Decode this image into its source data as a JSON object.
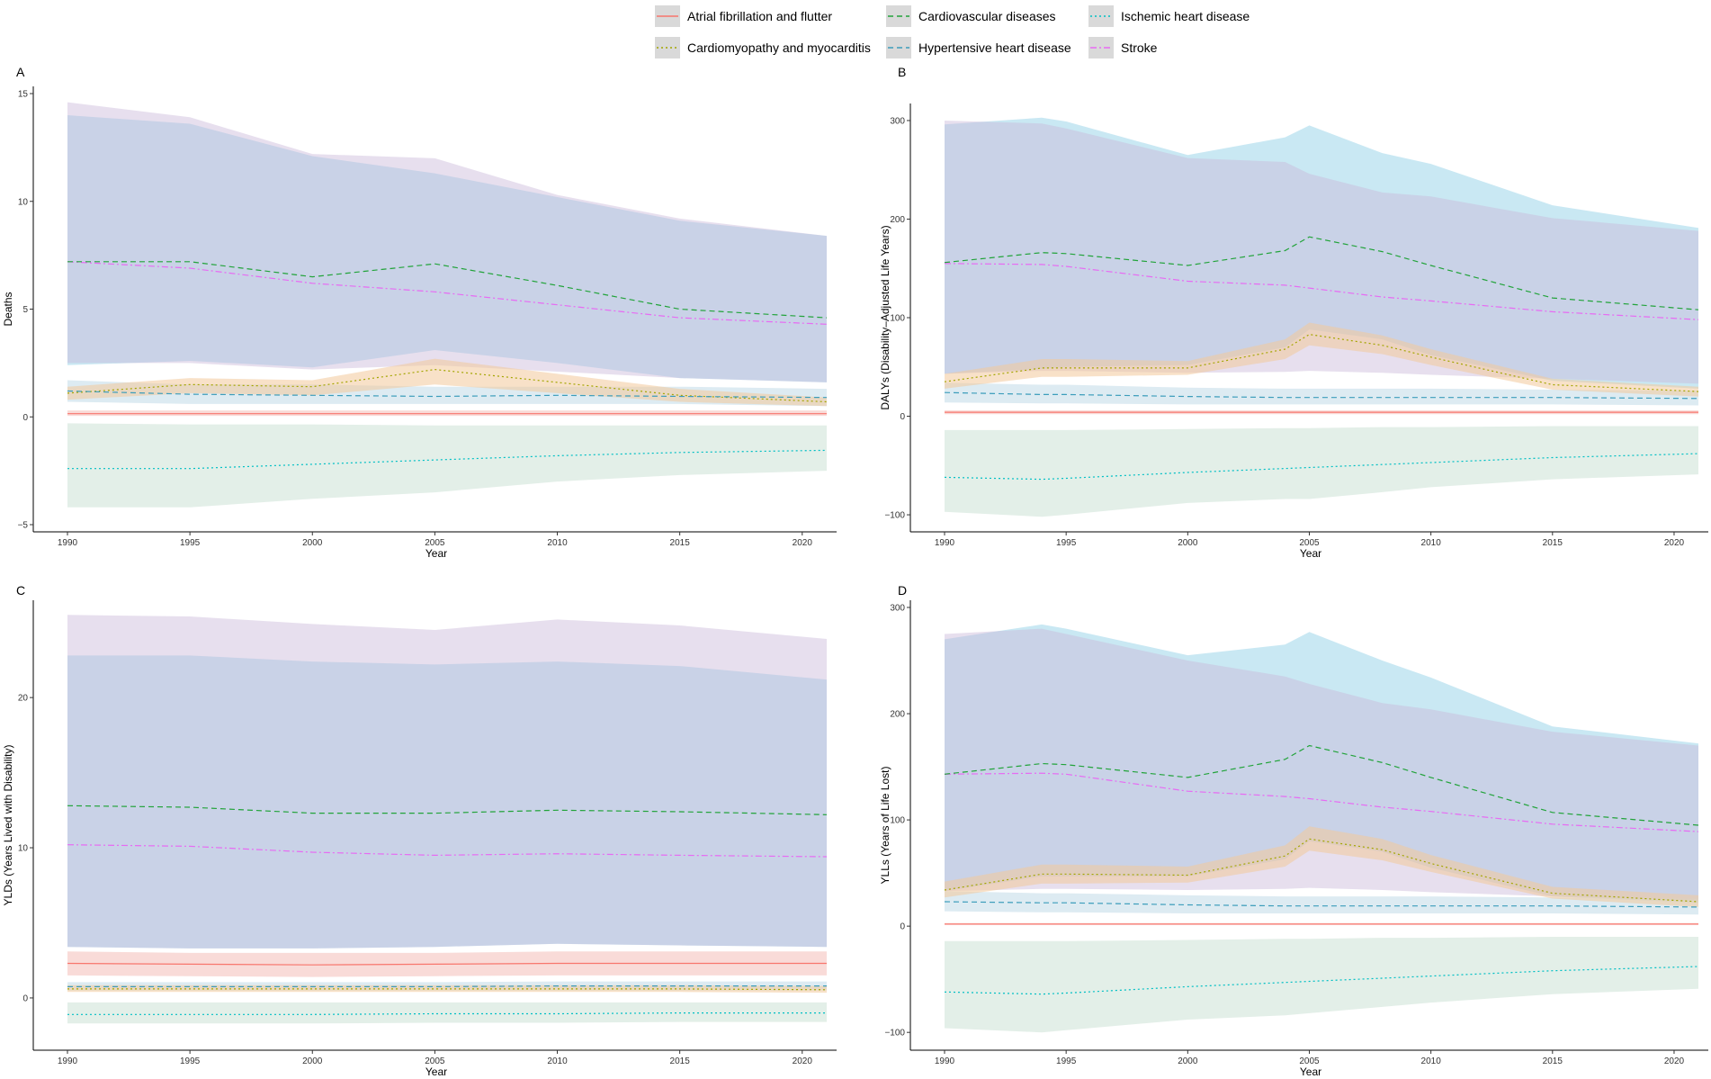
{
  "legend": {
    "items": [
      {
        "label": "Atrial fibrillation and flutter",
        "color": "#F8766D",
        "dash": "solid"
      },
      {
        "label": "Cardiovascular diseases",
        "color": "#22A33A",
        "dash": "dashed"
      },
      {
        "label": "Ischemic heart disease",
        "color": "#00BFC4",
        "dash": "dotted"
      },
      {
        "label": "Cardiomyopathy and myocarditis",
        "color": "#A3A500",
        "dash": "dotted"
      },
      {
        "label": "Hypertensive heart disease",
        "color": "#3C9DBB",
        "dash": "dashed"
      },
      {
        "label": "Stroke",
        "color": "#E76BF3",
        "dash": "dotdash"
      }
    ]
  },
  "chart_data": [
    {
      "type": "area",
      "panel": "A",
      "title": "",
      "xlabel": "Year",
      "ylabel": "Deaths",
      "xlim": [
        1990,
        2021
      ],
      "ylim": [
        -5,
        15
      ],
      "xticks": [
        1990,
        1995,
        2000,
        2005,
        2010,
        2015,
        2020
      ],
      "yticks": [
        -5,
        0,
        5,
        10,
        15
      ],
      "x": [
        1990,
        1995,
        2000,
        2005,
        2010,
        2015,
        2021
      ],
      "series": [
        {
          "name": "Atrial fibrillation and flutter",
          "values": [
            0.15,
            0.15,
            0.15,
            0.15,
            0.15,
            0.15,
            0.15
          ],
          "lower": [
            0.05,
            0.05,
            0.05,
            0.05,
            0.05,
            0.05,
            0.05
          ],
          "upper": [
            0.3,
            0.3,
            0.3,
            0.3,
            0.3,
            0.3,
            0.3
          ]
        },
        {
          "name": "Cardiovascular diseases",
          "values": [
            7.2,
            7.2,
            6.5,
            7.1,
            6.1,
            5.0,
            4.6
          ],
          "lower": [
            2.4,
            2.6,
            2.3,
            3.1,
            2.5,
            1.8,
            1.6
          ],
          "upper": [
            14.0,
            13.6,
            12.1,
            11.3,
            10.2,
            9.1,
            8.4
          ]
        },
        {
          "name": "Ischemic heart disease",
          "values": [
            -2.4,
            -2.4,
            -2.2,
            -2.0,
            -1.8,
            -1.65,
            -1.55
          ],
          "lower": [
            -4.2,
            -4.2,
            -3.8,
            -3.5,
            -3.0,
            -2.7,
            -2.5
          ],
          "upper": [
            -0.3,
            -0.35,
            -0.35,
            -0.4,
            -0.4,
            -0.4,
            -0.4
          ]
        },
        {
          "name": "Cardiomyopathy and myocarditis",
          "values": [
            1.1,
            1.5,
            1.4,
            2.2,
            1.6,
            1.0,
            0.7
          ],
          "lower": [
            0.8,
            1.1,
            1.0,
            1.5,
            1.1,
            0.7,
            0.5
          ],
          "upper": [
            1.4,
            1.8,
            1.7,
            2.7,
            2.0,
            1.3,
            0.9
          ]
        },
        {
          "name": "Hypertensive heart disease",
          "values": [
            1.2,
            1.05,
            1.0,
            0.95,
            1.0,
            0.95,
            0.9
          ],
          "lower": [
            0.7,
            0.6,
            0.6,
            0.6,
            0.6,
            0.6,
            0.5
          ],
          "upper": [
            1.7,
            1.5,
            1.5,
            1.4,
            1.4,
            1.4,
            1.3
          ]
        },
        {
          "name": "Stroke",
          "values": [
            7.2,
            6.9,
            6.2,
            5.8,
            5.2,
            4.6,
            4.3
          ],
          "lower": [
            2.5,
            2.5,
            2.2,
            2.4,
            2.1,
            1.8,
            1.6
          ],
          "upper": [
            14.6,
            13.9,
            12.2,
            12.0,
            10.3,
            9.2,
            8.4
          ]
        }
      ]
    },
    {
      "type": "area",
      "panel": "B",
      "title": "",
      "xlabel": "Year",
      "ylabel": "DALYs (Disability–Adjusted Life Years)",
      "xlim": [
        1990,
        2021
      ],
      "ylim": [
        -110,
        310
      ],
      "xticks": [
        1990,
        1995,
        2000,
        2005,
        2010,
        2015,
        2020
      ],
      "yticks": [
        -100,
        0,
        100,
        200,
        300
      ],
      "x": [
        1990,
        1994,
        1995,
        2000,
        2004,
        2005,
        2008,
        2010,
        2015,
        2021
      ],
      "series": [
        {
          "name": "Atrial fibrillation and flutter",
          "values": [
            4,
            4,
            4,
            4,
            4,
            4,
            4,
            4,
            4,
            4
          ],
          "lower": [
            2,
            2,
            2,
            2,
            2,
            2,
            2,
            2,
            2,
            2
          ],
          "upper": [
            6,
            6,
            6,
            6,
            6,
            6,
            6,
            6,
            6,
            6
          ]
        },
        {
          "name": "Cardiovascular diseases",
          "values": [
            156,
            166,
            165,
            153,
            168,
            182,
            167,
            153,
            120,
            108
          ],
          "lower": [
            43,
            48,
            50,
            52,
            70,
            88,
            78,
            62,
            36,
            28
          ],
          "upper": [
            296,
            303,
            299,
            265,
            283,
            295,
            267,
            256,
            214,
            191
          ]
        },
        {
          "name": "Ischemic heart disease",
          "values": [
            -62,
            -64,
            -63,
            -57,
            -53,
            -52,
            -49,
            -47,
            -42,
            -38
          ],
          "lower": [
            -97,
            -102,
            -100,
            -88,
            -84,
            -84,
            -77,
            -72,
            -64,
            -59
          ],
          "upper": [
            -14,
            -14,
            -14,
            -13,
            -12,
            -12,
            -11,
            -11,
            -10,
            -10
          ]
        },
        {
          "name": "Cardiomyopathy and myocarditis",
          "values": [
            35,
            49,
            49,
            49,
            68,
            83,
            72,
            60,
            32,
            25
          ],
          "lower": [
            28,
            40,
            40,
            42,
            58,
            72,
            63,
            52,
            27,
            20
          ],
          "upper": [
            43,
            58,
            58,
            56,
            78,
            95,
            82,
            68,
            38,
            30
          ]
        },
        {
          "name": "Hypertensive heart disease",
          "values": [
            24,
            22,
            22,
            20,
            19,
            19,
            19,
            19,
            19,
            18
          ],
          "lower": [
            14,
            13,
            13,
            12,
            12,
            12,
            12,
            12,
            12,
            11
          ],
          "upper": [
            34,
            32,
            32,
            29,
            28,
            28,
            28,
            28,
            27,
            26
          ]
        },
        {
          "name": "Stroke",
          "values": [
            155,
            154,
            152,
            137,
            133,
            130,
            121,
            117,
            106,
            98
          ],
          "lower": [
            43,
            46,
            46,
            44,
            45,
            46,
            44,
            42,
            38,
            33
          ],
          "upper": [
            300,
            297,
            292,
            262,
            258,
            246,
            227,
            223,
            201,
            188
          ]
        }
      ]
    },
    {
      "type": "area",
      "panel": "C",
      "title": "",
      "xlabel": "Year",
      "ylabel": "YLDs (Years Lived with Disability)",
      "xlim": [
        1990,
        2021
      ],
      "ylim": [
        -3,
        26
      ],
      "xticks": [
        1990,
        1995,
        2000,
        2005,
        2010,
        2015,
        2020
      ],
      "yticks": [
        0,
        10,
        20
      ],
      "x": [
        1990,
        1995,
        2000,
        2005,
        2010,
        2015,
        2021
      ],
      "series": [
        {
          "name": "Atrial fibrillation and flutter",
          "values": [
            2.3,
            2.25,
            2.2,
            2.25,
            2.3,
            2.3,
            2.3
          ],
          "lower": [
            1.5,
            1.45,
            1.4,
            1.45,
            1.5,
            1.5,
            1.5
          ],
          "upper": [
            3.1,
            3.0,
            3.0,
            3.0,
            3.1,
            3.1,
            3.1
          ]
        },
        {
          "name": "Cardiovascular diseases",
          "values": [
            12.8,
            12.7,
            12.3,
            12.3,
            12.5,
            12.4,
            12.2
          ],
          "lower": [
            3.4,
            3.3,
            3.3,
            3.4,
            3.6,
            3.5,
            3.4
          ],
          "upper": [
            22.8,
            22.8,
            22.4,
            22.2,
            22.4,
            22.1,
            21.2
          ]
        },
        {
          "name": "Ischemic heart disease",
          "values": [
            -1.1,
            -1.1,
            -1.1,
            -1.05,
            -1.05,
            -1.0,
            -1.0
          ],
          "lower": [
            -1.7,
            -1.7,
            -1.7,
            -1.65,
            -1.65,
            -1.6,
            -1.6
          ],
          "upper": [
            -0.3,
            -0.3,
            -0.3,
            -0.3,
            -0.3,
            -0.3,
            -0.3
          ]
        },
        {
          "name": "Cardiomyopathy and myocarditis",
          "values": [
            0.6,
            0.6,
            0.6,
            0.6,
            0.6,
            0.6,
            0.55
          ],
          "lower": [
            0.4,
            0.4,
            0.4,
            0.4,
            0.4,
            0.4,
            0.35
          ],
          "upper": [
            0.85,
            0.85,
            0.85,
            0.85,
            0.85,
            0.85,
            0.8
          ]
        },
        {
          "name": "Hypertensive heart disease",
          "values": [
            0.75,
            0.75,
            0.75,
            0.75,
            0.8,
            0.8,
            0.8
          ],
          "lower": [
            0.5,
            0.5,
            0.5,
            0.5,
            0.5,
            0.5,
            0.5
          ],
          "upper": [
            1.05,
            1.05,
            1.05,
            1.05,
            1.1,
            1.1,
            1.1
          ]
        },
        {
          "name": "Stroke",
          "values": [
            10.2,
            10.1,
            9.7,
            9.5,
            9.6,
            9.5,
            9.4
          ],
          "lower": [
            3.4,
            3.3,
            3.3,
            3.4,
            3.6,
            3.5,
            3.4
          ],
          "upper": [
            25.5,
            25.4,
            24.9,
            24.5,
            25.2,
            24.8,
            23.9
          ]
        }
      ]
    },
    {
      "type": "area",
      "panel": "D",
      "title": "",
      "xlabel": "Year",
      "ylabel": "YLLs (Years of Life Lost)",
      "xlim": [
        1990,
        2021
      ],
      "ylim": [
        -110,
        300
      ],
      "xticks": [
        1990,
        1995,
        2000,
        2005,
        2010,
        2015,
        2020
      ],
      "yticks": [
        -100,
        0,
        100,
        200,
        300
      ],
      "x": [
        1990,
        1994,
        1995,
        2000,
        2004,
        2005,
        2008,
        2010,
        2015,
        2021
      ],
      "series": [
        {
          "name": "Atrial fibrillation and flutter",
          "values": [
            2,
            2,
            2,
            2,
            2,
            2,
            2,
            2,
            2,
            2
          ],
          "lower": [
            1,
            1,
            1,
            1,
            1,
            1,
            1,
            1,
            1,
            1
          ],
          "upper": [
            3,
            3,
            3,
            3,
            3,
            3,
            3,
            3,
            3,
            3
          ]
        },
        {
          "name": "Cardiovascular diseases",
          "values": [
            143,
            153,
            152,
            140,
            157,
            170,
            154,
            140,
            107,
            95
          ],
          "lower": [
            33,
            47,
            47,
            47,
            63,
            80,
            70,
            55,
            28,
            22
          ],
          "upper": [
            270,
            284,
            280,
            255,
            265,
            277,
            250,
            234,
            188,
            172
          ]
        },
        {
          "name": "Ischemic heart disease",
          "values": [
            -62,
            -64,
            -63,
            -57,
            -53,
            -52,
            -49,
            -47,
            -42,
            -38
          ],
          "lower": [
            -96,
            -100,
            -98,
            -88,
            -84,
            -82,
            -76,
            -72,
            -64,
            -59
          ],
          "upper": [
            -14,
            -14,
            -14,
            -13,
            -12,
            -12,
            -11,
            -11,
            -10,
            -10
          ]
        },
        {
          "name": "Cardiomyopathy and myocarditis",
          "values": [
            34,
            49,
            49,
            48,
            66,
            82,
            72,
            59,
            31,
            23
          ],
          "lower": [
            27,
            40,
            40,
            41,
            56,
            71,
            62,
            51,
            26,
            18
          ],
          "upper": [
            42,
            58,
            58,
            56,
            76,
            94,
            82,
            67,
            37,
            29
          ]
        },
        {
          "name": "Hypertensive heart disease",
          "values": [
            23,
            22,
            22,
            20,
            19,
            19,
            19,
            19,
            19,
            18
          ],
          "lower": [
            14,
            13,
            13,
            12,
            12,
            12,
            12,
            12,
            12,
            11
          ],
          "upper": [
            33,
            31,
            31,
            29,
            28,
            28,
            28,
            28,
            27,
            26
          ]
        },
        {
          "name": "Stroke",
          "values": [
            143,
            144,
            143,
            127,
            122,
            120,
            112,
            108,
            96,
            89
          ],
          "lower": [
            33,
            35,
            35,
            34,
            35,
            36,
            34,
            32,
            28,
            24
          ],
          "upper": [
            275,
            280,
            275,
            250,
            235,
            228,
            210,
            204,
            183,
            170
          ]
        }
      ]
    }
  ]
}
